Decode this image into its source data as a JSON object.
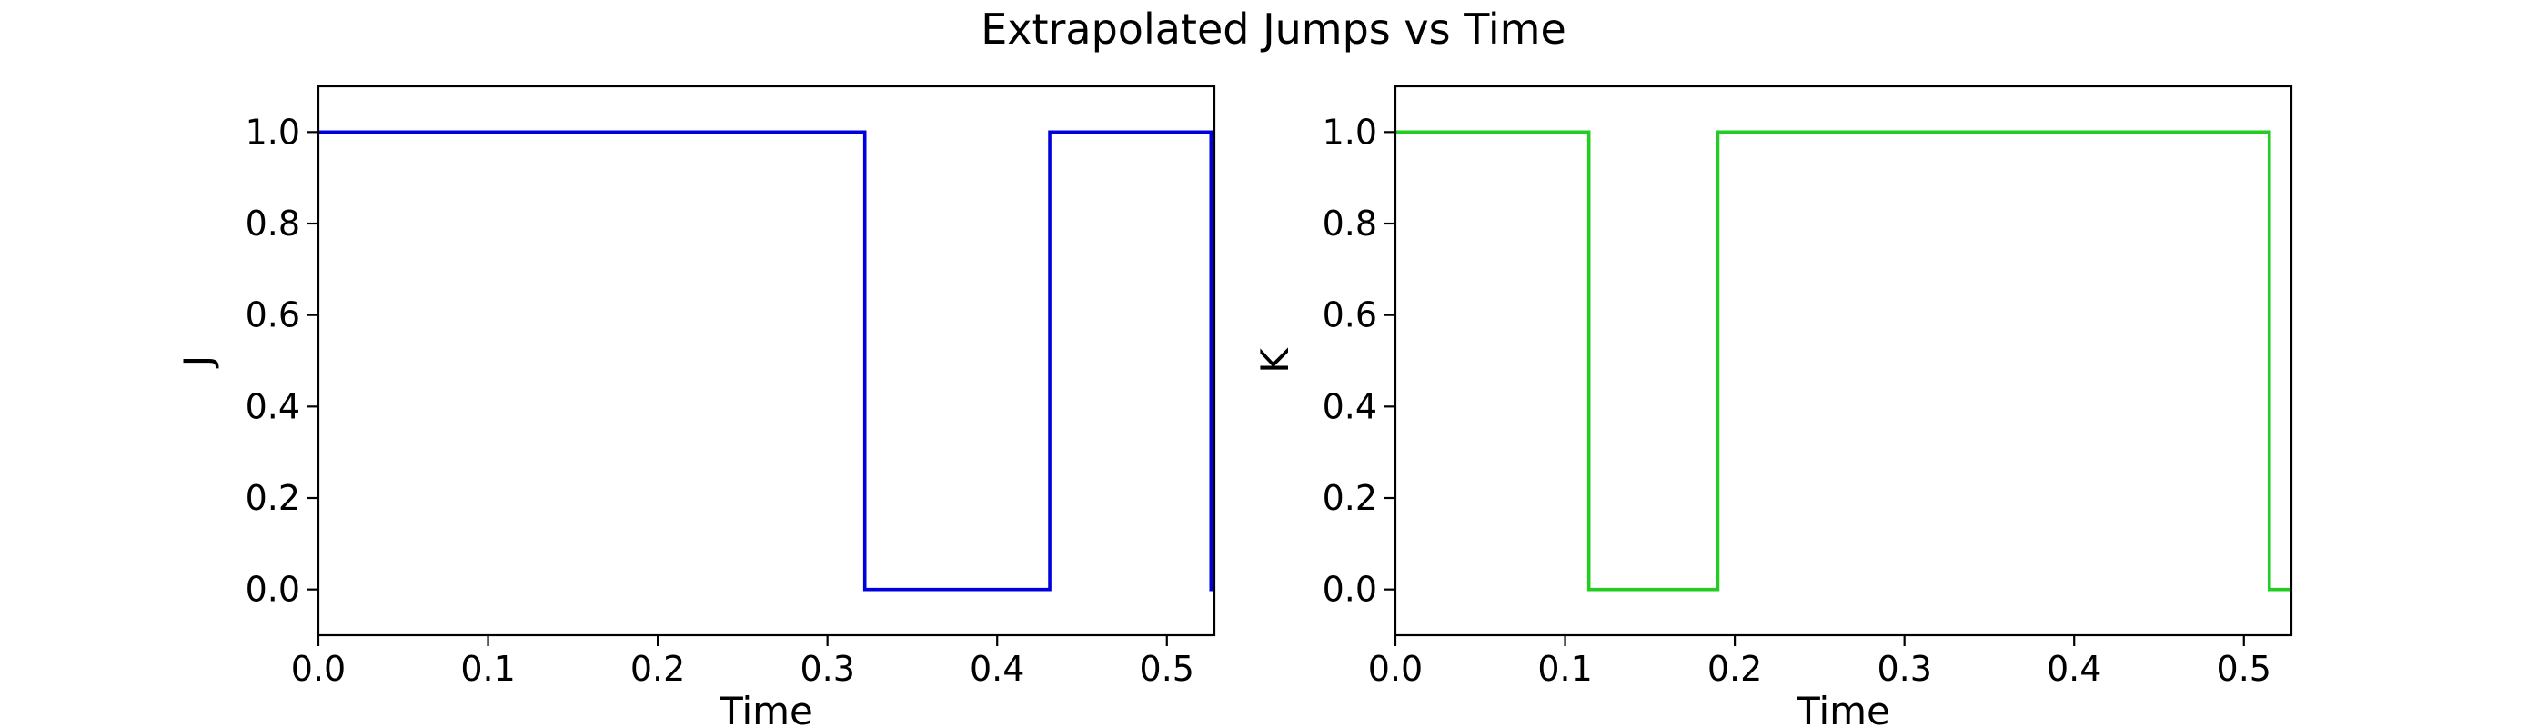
{
  "title": "Extrapolated Jumps vs Time",
  "chart_data": [
    {
      "type": "line",
      "drawstyle": "steps-post",
      "xlabel": "Time",
      "ylabel": "J",
      "xlim": [
        0.0,
        0.528
      ],
      "ylim": [
        -0.1,
        1.1
      ],
      "xticks": [
        0.0,
        0.1,
        0.2,
        0.3,
        0.4,
        0.5
      ],
      "xtick_labels": [
        "0.0",
        "0.1",
        "0.2",
        "0.3",
        "0.4",
        "0.5"
      ],
      "yticks": [
        0.0,
        0.2,
        0.4,
        0.6,
        0.8,
        1.0
      ],
      "ytick_labels": [
        "0.0",
        "0.2",
        "0.4",
        "0.6",
        "0.8",
        "1.0"
      ],
      "grid": false,
      "series": [
        {
          "color": "#0000dd",
          "x": [
            0.0,
            0.322,
            0.431,
            0.526,
            0.528
          ],
          "values": [
            1,
            0,
            1,
            0,
            0
          ]
        }
      ]
    },
    {
      "type": "line",
      "drawstyle": "steps-post",
      "xlabel": "Time",
      "ylabel": "K",
      "xlim": [
        0.0,
        0.528
      ],
      "ylim": [
        -0.1,
        1.1
      ],
      "xticks": [
        0.0,
        0.1,
        0.2,
        0.3,
        0.4,
        0.5
      ],
      "xtick_labels": [
        "0.0",
        "0.1",
        "0.2",
        "0.3",
        "0.4",
        "0.5"
      ],
      "yticks": [
        0.0,
        0.2,
        0.4,
        0.6,
        0.8,
        1.0
      ],
      "ytick_labels": [
        "0.0",
        "0.2",
        "0.4",
        "0.6",
        "0.8",
        "1.0"
      ],
      "grid": false,
      "series": [
        {
          "color": "#22cc22",
          "x": [
            0.0,
            0.114,
            0.19,
            0.515,
            0.528
          ],
          "values": [
            1,
            0,
            1,
            0,
            0
          ]
        }
      ]
    }
  ]
}
